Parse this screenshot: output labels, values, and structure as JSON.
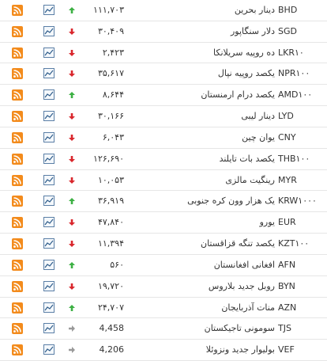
{
  "table": {
    "rows": [
      {
        "code": "BHD",
        "name": "دینار بحرین",
        "value": "۱۱۱,۷۰۳",
        "trend": "up"
      },
      {
        "code": "SGD",
        "name": "دلار سنگاپور",
        "value": "۳۰,۴۰۹",
        "trend": "down"
      },
      {
        "code": "LKR۱۰",
        "name": "ده روپیه سریلانکا",
        "value": "۲,۴۲۳",
        "trend": "down"
      },
      {
        "code": "NPR۱۰۰",
        "name": "یکصد روپیه نپال",
        "value": "۳۵,۶۱۷",
        "trend": "down"
      },
      {
        "code": "AMD۱۰۰",
        "name": "یکصد درام ارمنستان",
        "value": "۸,۶۴۴",
        "trend": "up"
      },
      {
        "code": "LYD",
        "name": "دینار لیبی",
        "value": "۳۰,۱۶۶",
        "trend": "down"
      },
      {
        "code": "CNY",
        "name": "یوان چین",
        "value": "۶,۰۴۳",
        "trend": "down"
      },
      {
        "code": "THB۱۰۰",
        "name": "یکصد بات تایلند",
        "value": "۱۲۶,۶۹۰",
        "trend": "down"
      },
      {
        "code": "MYR",
        "name": "رینگیت مالزی",
        "value": "۱۰,۰۵۳",
        "trend": "down"
      },
      {
        "code": "KRW۱۰۰۰",
        "name": "یک هزار وون کره جنوبی",
        "value": "۳۶,۹۱۹",
        "trend": "up"
      },
      {
        "code": "EUR",
        "name": "یورو",
        "value": "۴۷,۸۴۰",
        "trend": "down"
      },
      {
        "code": "KZT۱۰۰",
        "name": "یکصد تنگه قزاقستان",
        "value": "۱۱,۳۹۴",
        "trend": "down"
      },
      {
        "code": "AFN",
        "name": "افغانی افغانستان",
        "value": "۵۶۰",
        "trend": "up"
      },
      {
        "code": "BYN",
        "name": "روبل جدید بلاروس",
        "value": "۱۹,۷۲۰",
        "trend": "down"
      },
      {
        "code": "AZN",
        "name": "منات آذربایجان",
        "value": "۲۴,۷۰۷",
        "trend": "up"
      },
      {
        "code": "TJS",
        "name": "سومونی تاجیکستان",
        "value": "4,458",
        "trend": "flat"
      },
      {
        "code": "VEF",
        "name": "بولیوار جدید ونزوئلا",
        "value": "4,206",
        "trend": "flat"
      }
    ]
  }
}
